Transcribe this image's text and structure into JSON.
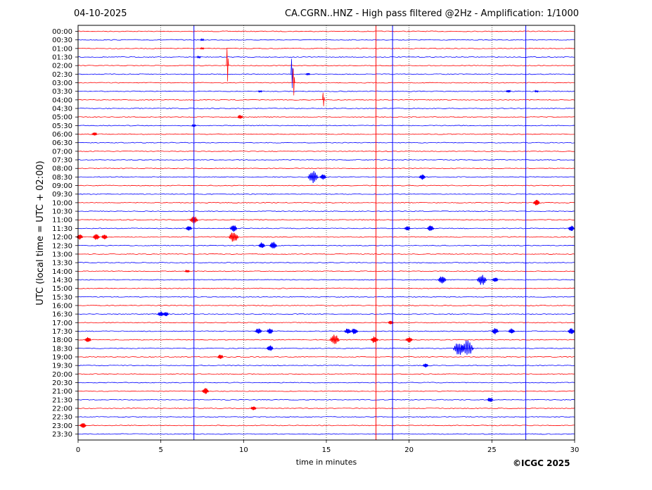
{
  "header": {
    "date": "04-10-2025",
    "title": "CA.CGRN..HNZ - High pass filtered @2Hz - Amplification: 1/1000"
  },
  "footer": {
    "credit": "©ICGC 2025"
  },
  "colors": {
    "even_trace": "#ff0000",
    "odd_trace": "#0000ff",
    "grid": "#000000",
    "background": "#ffffff"
  },
  "chart_data": {
    "type": "line",
    "subtype": "helicorder",
    "xlabel": "time in minutes",
    "ylabel": "UTC (local time = UTC + 02:00)",
    "xlim": [
      0,
      30
    ],
    "x_ticks": [
      0,
      5,
      10,
      15,
      20,
      25,
      30
    ],
    "grid": "dotted vertical lines at x ticks",
    "row_labels": [
      "00:00",
      "00:30",
      "01:00",
      "01:30",
      "02:00",
      "02:30",
      "03:00",
      "03:30",
      "04:00",
      "04:30",
      "05:00",
      "05:30",
      "06:00",
      "06:30",
      "07:00",
      "07:30",
      "08:00",
      "08:30",
      "09:00",
      "09:30",
      "10:00",
      "10:30",
      "11:00",
      "11:30",
      "12:00",
      "12:30",
      "13:00",
      "13:30",
      "14:00",
      "14:30",
      "15:00",
      "15:30",
      "16:00",
      "16:30",
      "17:00",
      "17:30",
      "18:00",
      "18:30",
      "19:00",
      "19:30",
      "20:00",
      "20:30",
      "21:00",
      "21:30",
      "22:00",
      "22:30",
      "23:00",
      "23:30"
    ],
    "series_colors": [
      "red",
      "blue"
    ],
    "vertical_marks": [
      {
        "minute": 7.0,
        "color": "blue"
      },
      {
        "minute": 18.0,
        "color": "red"
      },
      {
        "minute": 19.0,
        "color": "blue"
      },
      {
        "minute": 27.05,
        "color": "blue"
      }
    ],
    "events": [
      {
        "row": 1,
        "minute": 7.5,
        "amplitude": 1.2
      },
      {
        "row": 2,
        "minute": 7.5,
        "amplitude": 1.0
      },
      {
        "row": 3,
        "minute": 7.3,
        "amplitude": 1.2
      },
      {
        "row": 5,
        "minute": 13.9,
        "amplitude": 1.5
      },
      {
        "row": 7,
        "minute": 11.0,
        "amplitude": 1.3
      },
      {
        "row": 7,
        "minute": 26.0,
        "amplitude": 2.0
      },
      {
        "row": 7,
        "minute": 27.7,
        "amplitude": 1.2
      },
      {
        "row": 4,
        "minute": 9.0,
        "amplitude": 25,
        "spike": true
      },
      {
        "row": 5,
        "minute": 12.9,
        "amplitude": 22,
        "spike": true
      },
      {
        "row": 6,
        "minute": 13.0,
        "amplitude": 20,
        "spike": true
      },
      {
        "row": 8,
        "minute": 14.8,
        "amplitude": 10,
        "spike": true
      },
      {
        "row": 10,
        "minute": 9.8,
        "amplitude": 3.0
      },
      {
        "row": 11,
        "minute": 7.0,
        "amplitude": 2.0
      },
      {
        "row": 12,
        "minute": 1.0,
        "amplitude": 2.5
      },
      {
        "row": 17,
        "minute": 14.2,
        "amplitude": 9.0
      },
      {
        "row": 17,
        "minute": 14.8,
        "amplitude": 4.0
      },
      {
        "row": 17,
        "minute": 20.8,
        "amplitude": 4.0
      },
      {
        "row": 20,
        "minute": 27.7,
        "amplitude": 4.5
      },
      {
        "row": 22,
        "minute": 7.0,
        "amplitude": 6.0
      },
      {
        "row": 23,
        "minute": 6.7,
        "amplitude": 3.5
      },
      {
        "row": 23,
        "minute": 9.4,
        "amplitude": 5.0
      },
      {
        "row": 23,
        "minute": 19.9,
        "amplitude": 3.5
      },
      {
        "row": 23,
        "minute": 21.3,
        "amplitude": 4.5
      },
      {
        "row": 23,
        "minute": 29.8,
        "amplitude": 4.0
      },
      {
        "row": 24,
        "minute": 0.1,
        "amplitude": 4.0
      },
      {
        "row": 24,
        "minute": 1.1,
        "amplitude": 4.5
      },
      {
        "row": 24,
        "minute": 1.6,
        "amplitude": 3.5
      },
      {
        "row": 24,
        "minute": 9.4,
        "amplitude": 8.0
      },
      {
        "row": 25,
        "minute": 11.1,
        "amplitude": 4.5
      },
      {
        "row": 25,
        "minute": 11.8,
        "amplitude": 5.5
      },
      {
        "row": 28,
        "minute": 6.6,
        "amplitude": 2.0
      },
      {
        "row": 29,
        "minute": 22.0,
        "amplitude": 6.0
      },
      {
        "row": 29,
        "minute": 24.4,
        "amplitude": 8.0
      },
      {
        "row": 29,
        "minute": 25.2,
        "amplitude": 3.5
      },
      {
        "row": 33,
        "minute": 5.0,
        "amplitude": 4.0
      },
      {
        "row": 33,
        "minute": 5.3,
        "amplitude": 3.5
      },
      {
        "row": 34,
        "minute": 18.9,
        "amplitude": 3.0
      },
      {
        "row": 35,
        "minute": 10.9,
        "amplitude": 4.5
      },
      {
        "row": 35,
        "minute": 11.6,
        "amplitude": 4.0
      },
      {
        "row": 35,
        "minute": 16.3,
        "amplitude": 4.5
      },
      {
        "row": 35,
        "minute": 16.7,
        "amplitude": 4.5
      },
      {
        "row": 35,
        "minute": 25.2,
        "amplitude": 4.5
      },
      {
        "row": 35,
        "minute": 26.2,
        "amplitude": 4.0
      },
      {
        "row": 35,
        "minute": 29.8,
        "amplitude": 4.5
      },
      {
        "row": 36,
        "minute": 0.6,
        "amplitude": 4.0
      },
      {
        "row": 36,
        "minute": 15.5,
        "amplitude": 8.0
      },
      {
        "row": 36,
        "minute": 17.9,
        "amplitude": 5.0
      },
      {
        "row": 36,
        "minute": 20.0,
        "amplitude": 4.5
      },
      {
        "row": 37,
        "minute": 11.6,
        "amplitude": 4.5
      },
      {
        "row": 37,
        "minute": 23.0,
        "amplitude": 10.0
      },
      {
        "row": 37,
        "minute": 23.5,
        "amplitude": 12.0
      },
      {
        "row": 38,
        "minute": 8.6,
        "amplitude": 3.5
      },
      {
        "row": 39,
        "minute": 21.0,
        "amplitude": 3.0
      },
      {
        "row": 42,
        "minute": 7.7,
        "amplitude": 4.5
      },
      {
        "row": 43,
        "minute": 24.9,
        "amplitude": 3.5
      },
      {
        "row": 44,
        "minute": 10.6,
        "amplitude": 3.0
      },
      {
        "row": 46,
        "minute": 0.3,
        "amplitude": 4.0
      }
    ]
  }
}
